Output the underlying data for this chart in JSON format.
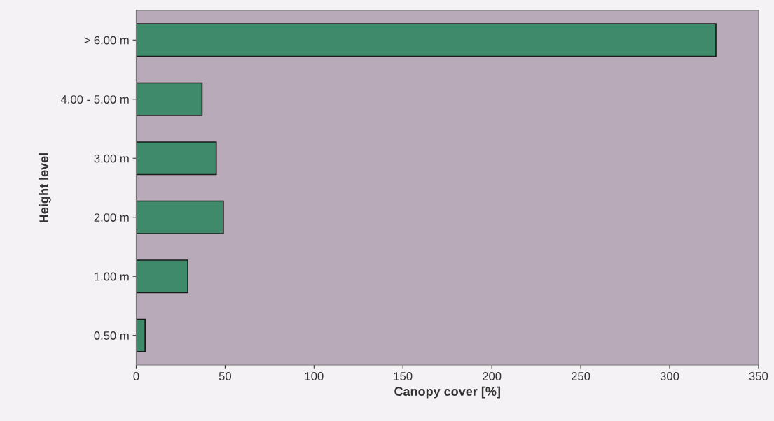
{
  "chart_data": {
    "type": "bar",
    "orientation": "horizontal",
    "xlabel": "Canopy cover [%]",
    "ylabel": "Height level",
    "categories": [
      "> 6.00 m",
      "4.00 - 5.00 m",
      "3.00 m",
      "2.00 m",
      "1.00 m",
      "0.50 m"
    ],
    "values": [
      326,
      37,
      45,
      49,
      29,
      5
    ],
    "color": "#3f8a6a",
    "xlim": [
      0,
      350
    ],
    "xticks": [
      0,
      50,
      100,
      150,
      200,
      250,
      300,
      350
    ],
    "grid": false
  }
}
